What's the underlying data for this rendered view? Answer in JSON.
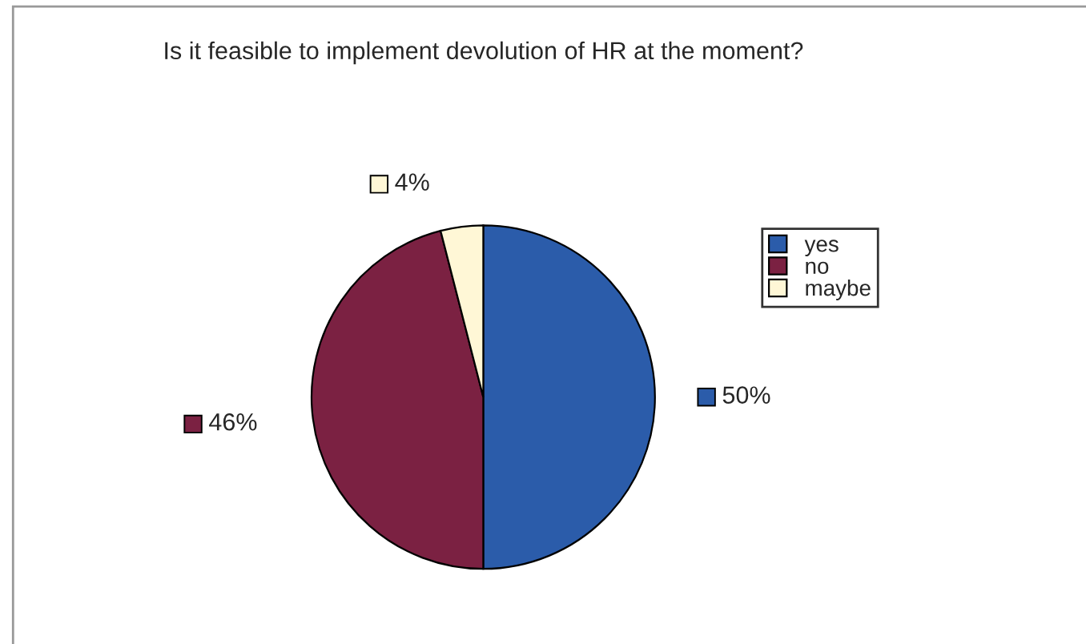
{
  "chart_data": {
    "type": "pie",
    "title": "Is it feasible to implement devolution of HR at the moment?",
    "categories": [
      "yes",
      "no",
      "maybe"
    ],
    "values": [
      50,
      46,
      4
    ],
    "colors": [
      "#2b5caa",
      "#7b2142",
      "#fff7d6"
    ],
    "value_labels": [
      "50%",
      "46%",
      "4%"
    ],
    "legend": "right"
  }
}
